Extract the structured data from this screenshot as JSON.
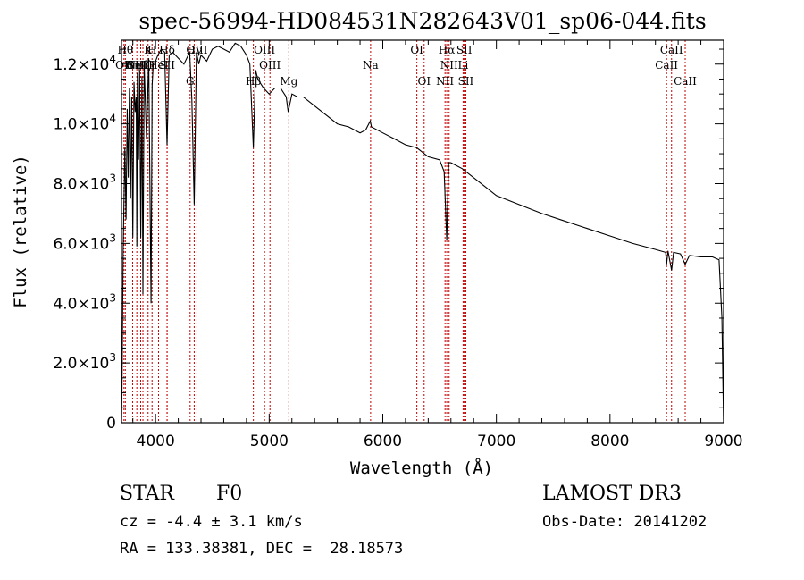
{
  "chart_data": {
    "type": "line",
    "title": "spec-56994-HD084531N282643V01_sp06-044.fits",
    "xlabel": "Wavelength (Å)",
    "ylabel": "Flux (relative)",
    "xlim": [
      3700,
      9000
    ],
    "ylim": [
      0,
      12800
    ],
    "x_ticks": [
      4000,
      5000,
      6000,
      7000,
      8000,
      9000
    ],
    "y_ticks": [
      {
        "value": 0,
        "label": "0"
      },
      {
        "value": 2000,
        "label": "2.0×10",
        "exp": "3"
      },
      {
        "value": 4000,
        "label": "4.0×10",
        "exp": "3"
      },
      {
        "value": 6000,
        "label": "6.0×10",
        "exp": "3"
      },
      {
        "value": 8000,
        "label": "8.0×10",
        "exp": "3"
      },
      {
        "value": 10000,
        "label": "1.0×10",
        "exp": "4"
      },
      {
        "value": 12000,
        "label": "1.2×10",
        "exp": "4"
      }
    ],
    "series": [
      {
        "name": "spectrum",
        "x": [
          3700,
          3705,
          3715,
          3730,
          3740,
          3750,
          3760,
          3770,
          3780,
          3790,
          3800,
          3810,
          3820,
          3830,
          3835,
          3840,
          3850,
          3860,
          3870,
          3880,
          3889,
          3900,
          3920,
          3940,
          3960,
          3970,
          3980,
          4000,
          4020,
          4050,
          4080,
          4101,
          4120,
          4150,
          4200,
          4250,
          4300,
          4320,
          4340,
          4360,
          4380,
          4400,
          4450,
          4500,
          4550,
          4600,
          4650,
          4700,
          4750,
          4800,
          4830,
          4861,
          4880,
          4900,
          4950,
          5000,
          5050,
          5100,
          5150,
          5167,
          5200,
          5250,
          5300,
          5400,
          5500,
          5600,
          5700,
          5800,
          5850,
          5890,
          5900,
          5950,
          6000,
          6100,
          6200,
          6300,
          6400,
          6500,
          6540,
          6563,
          6580,
          6600,
          6700,
          6800,
          6900,
          7000,
          7200,
          7400,
          7600,
          7800,
          8000,
          8200,
          8400,
          8490,
          8498,
          8510,
          8542,
          8560,
          8620,
          8662,
          8700,
          8800,
          8900,
          8960,
          8985,
          8995,
          9000
        ],
        "y": [
          0,
          1200,
          5800,
          9200,
          6800,
          10500,
          8200,
          11200,
          7500,
          10900,
          6200,
          11400,
          10400,
          10900,
          5900,
          11700,
          8800,
          11800,
          6200,
          11600,
          4300,
          12000,
          9500,
          12200,
          4000,
          11300,
          12000,
          12100,
          12300,
          12500,
          12400,
          9300,
          12300,
          12400,
          12200,
          12000,
          12400,
          10800,
          7300,
          12400,
          12000,
          12300,
          12100,
          12500,
          12600,
          12500,
          12400,
          12700,
          12600,
          12300,
          12000,
          9200,
          11800,
          11500,
          11200,
          11000,
          11200,
          11200,
          10900,
          10400,
          11000,
          10900,
          10900,
          10600,
          10300,
          10000,
          9900,
          9700,
          9800,
          10100,
          9900,
          9800,
          9700,
          9500,
          9300,
          9200,
          8900,
          8800,
          8400,
          6100,
          8700,
          8700,
          8500,
          8200,
          7900,
          7600,
          7300,
          7000,
          6750,
          6500,
          6250,
          6000,
          5800,
          5700,
          5300,
          5750,
          5100,
          5700,
          5650,
          5300,
          5600,
          5550,
          5550,
          5450,
          3500,
          1000,
          0
        ]
      }
    ],
    "lines": [
      {
        "wl": 3722,
        "name": "OII",
        "row": 2
      },
      {
        "wl": 3734,
        "name": "Hθ",
        "row": 1
      },
      {
        "wl": 3798,
        "name": "Hη",
        "row": 2
      },
      {
        "wl": 3835,
        "name": "OIII",
        "row": 2
      },
      {
        "wl": 3869,
        "name": "NeIII",
        "row": 2
      },
      {
        "wl": 3889,
        "name": "Hζ",
        "row": 2
      },
      {
        "wl": 3934,
        "name": "K",
        "row": 1
      },
      {
        "wl": 3969,
        "name": "H",
        "row": 1
      },
      {
        "wl": 4026,
        "name": "HeI",
        "row": 2
      },
      {
        "wl": 4101,
        "name": "Hδ",
        "row": 1
      },
      {
        "wl": 4102,
        "name": "SII",
        "row": 2
      },
      {
        "wl": 4304,
        "name": "G",
        "row": 3
      },
      {
        "wl": 4340,
        "name": "Hγ",
        "row": 1
      },
      {
        "wl": 4364,
        "name": "OIII",
        "row": 1
      },
      {
        "wl": 4861,
        "name": "Hβ",
        "row": 3
      },
      {
        "wl": 4959,
        "name": "OIII",
        "row": 1
      },
      {
        "wl": 5007,
        "name": "OIII",
        "row": 2
      },
      {
        "wl": 5173,
        "name": "Mg",
        "row": 3
      },
      {
        "wl": 5893,
        "name": "Na",
        "row": 2
      },
      {
        "wl": 6300,
        "name": "OI",
        "row": 1
      },
      {
        "wl": 6364,
        "name": "OI",
        "row": 3
      },
      {
        "wl": 6548,
        "name": "NII",
        "row": 3
      },
      {
        "wl": 6563,
        "name": "Hα",
        "row": 1
      },
      {
        "wl": 6584,
        "name": "NII",
        "row": 2
      },
      {
        "wl": 6707,
        "name": "Li",
        "row": 2
      },
      {
        "wl": 6717,
        "name": "SII",
        "row": 1
      },
      {
        "wl": 6731,
        "name": "SII",
        "row": 3
      },
      {
        "wl": 8498,
        "name": "CaII",
        "row": 2
      },
      {
        "wl": 8542,
        "name": "CaII",
        "row": 1
      },
      {
        "wl": 8662,
        "name": "CaII",
        "row": 3
      }
    ],
    "colors": {
      "line_markers": "#c00000",
      "spectrum": "#000000",
      "axes": "#000000"
    }
  },
  "info": {
    "object_class": "STAR",
    "subclass": "F0",
    "survey": "LAMOST DR3",
    "cz": "cz = -4.4 ± 3.1 km/s",
    "obs_date": "Obs-Date: 20141202",
    "coords": "RA = 133.38381, DEC =  28.18573"
  }
}
